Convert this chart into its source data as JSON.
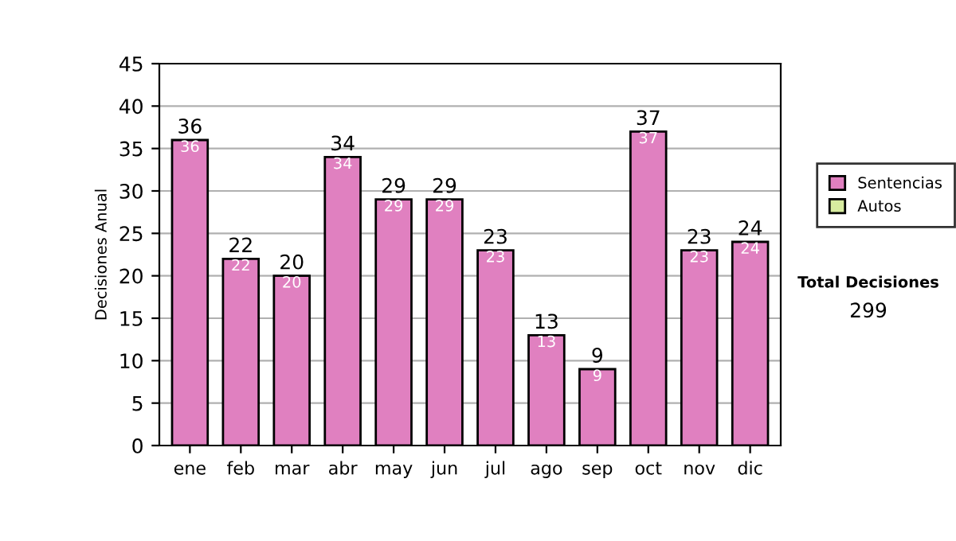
{
  "chart_data": {
    "type": "bar",
    "stacked": true,
    "ylabel": "Decisiones Anual",
    "categories": [
      "ene",
      "feb",
      "mar",
      "abr",
      "may",
      "jun",
      "jul",
      "ago",
      "sep",
      "oct",
      "nov",
      "dic"
    ],
    "series": [
      {
        "name": "Sentencias",
        "color": "#e080c0",
        "values": [
          36,
          22,
          20,
          34,
          29,
          29,
          23,
          13,
          9,
          37,
          23,
          24
        ],
        "value_labels": [
          "36",
          "22",
          "20",
          "34",
          "29",
          "29",
          "23",
          "13",
          "9",
          "37",
          "23",
          "24"
        ]
      },
      {
        "name": "Autos",
        "color": "#d8eca0",
        "values": [
          null,
          null,
          null,
          null,
          null,
          null,
          null,
          null,
          null,
          null,
          null,
          null
        ]
      }
    ],
    "totals": [
      "36",
      "22",
      "20",
      "34",
      "29",
      "29",
      "23",
      "13",
      "9",
      "37",
      "23",
      "24"
    ],
    "ylim": [
      0,
      45
    ],
    "yticks": [
      0,
      5,
      10,
      15,
      20,
      25,
      30,
      35,
      40,
      45
    ],
    "grid": "y",
    "legend": "right",
    "annotations": [
      "Total Decisiones",
      "299"
    ]
  }
}
